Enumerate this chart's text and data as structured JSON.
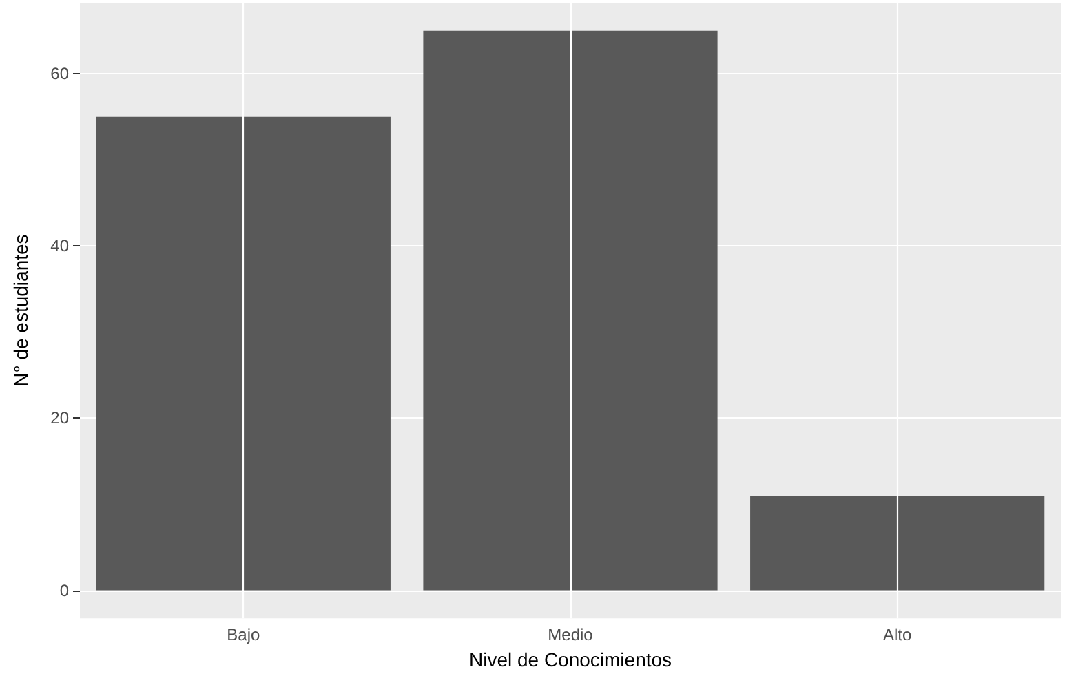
{
  "chart_data": {
    "type": "bar",
    "xlabel": "Nivel de Conocimientos",
    "ylabel": "N° de estudiantes",
    "categories": [
      "Bajo",
      "Medio",
      "Alto"
    ],
    "values": [
      55,
      65,
      11
    ],
    "color": "#595959",
    "ylim": [
      -3.25,
      68.25
    ],
    "yticks": [
      0,
      20,
      40,
      60
    ],
    "grid": true
  }
}
